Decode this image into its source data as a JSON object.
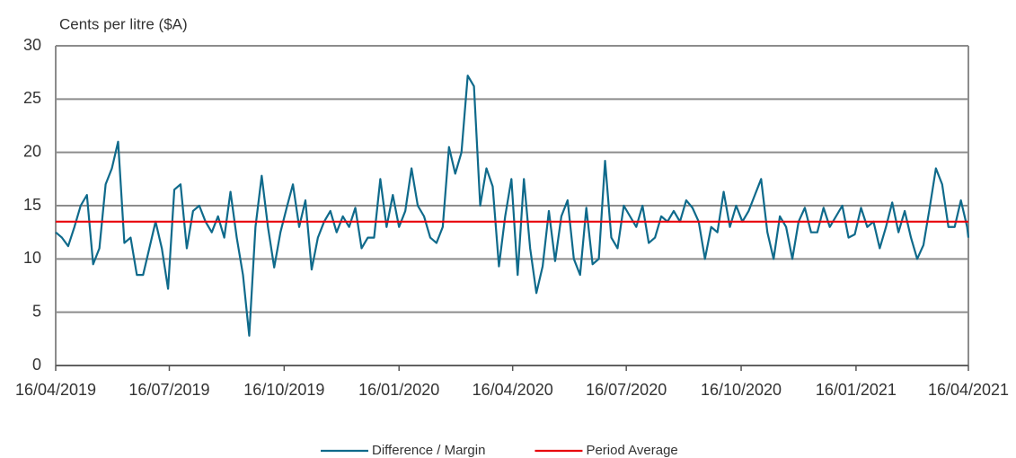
{
  "chart_data": {
    "type": "line",
    "y_axis_label": "Cents per litre ($A)",
    "x": [
      "2019-04-16",
      "2019-04-21",
      "2019-04-26",
      "2019-05-01",
      "2019-05-06",
      "2019-05-11",
      "2019-05-16",
      "2019-05-21",
      "2019-05-26",
      "2019-05-31",
      "2019-06-05",
      "2019-06-10",
      "2019-06-15",
      "2019-06-20",
      "2019-06-25",
      "2019-06-30",
      "2019-07-05",
      "2019-07-10",
      "2019-07-15",
      "2019-07-20",
      "2019-07-25",
      "2019-07-30",
      "2019-08-04",
      "2019-08-09",
      "2019-08-14",
      "2019-08-19",
      "2019-08-24",
      "2019-08-29",
      "2019-09-03",
      "2019-09-08",
      "2019-09-13",
      "2019-09-18",
      "2019-09-23",
      "2019-09-28",
      "2019-10-03",
      "2019-10-08",
      "2019-10-13",
      "2019-10-18",
      "2019-10-23",
      "2019-10-28",
      "2019-11-02",
      "2019-11-07",
      "2019-11-12",
      "2019-11-17",
      "2019-11-22",
      "2019-11-27",
      "2019-12-02",
      "2019-12-07",
      "2019-12-12",
      "2019-12-17",
      "2019-12-22",
      "2019-12-27",
      "2020-01-01",
      "2020-01-06",
      "2020-01-11",
      "2020-01-16",
      "2020-01-21",
      "2020-01-26",
      "2020-01-31",
      "2020-02-05",
      "2020-02-10",
      "2020-02-15",
      "2020-02-20",
      "2020-02-25",
      "2020-03-01",
      "2020-03-06",
      "2020-03-11",
      "2020-03-16",
      "2020-03-21",
      "2020-03-26",
      "2020-03-31",
      "2020-04-05",
      "2020-04-10",
      "2020-04-15",
      "2020-04-20",
      "2020-04-25",
      "2020-04-30",
      "2020-05-05",
      "2020-05-10",
      "2020-05-15",
      "2020-05-20",
      "2020-05-25",
      "2020-05-30",
      "2020-06-04",
      "2020-06-09",
      "2020-06-14",
      "2020-06-19",
      "2020-06-24",
      "2020-06-29",
      "2020-07-04",
      "2020-07-09",
      "2020-07-14",
      "2020-07-19",
      "2020-07-24",
      "2020-07-29",
      "2020-08-03",
      "2020-08-08",
      "2020-08-13",
      "2020-08-18",
      "2020-08-23",
      "2020-08-28",
      "2020-09-02",
      "2020-09-07",
      "2020-09-12",
      "2020-09-17",
      "2020-09-22",
      "2020-09-27",
      "2020-10-02",
      "2020-10-07",
      "2020-10-12",
      "2020-10-17",
      "2020-10-22",
      "2020-10-27",
      "2020-11-01",
      "2020-11-06",
      "2020-11-11",
      "2020-11-16",
      "2020-11-21",
      "2020-11-26",
      "2020-12-01",
      "2020-12-06",
      "2020-12-11",
      "2020-12-16",
      "2020-12-21",
      "2020-12-26",
      "2020-12-31",
      "2021-01-05",
      "2021-01-10",
      "2021-01-15",
      "2021-01-20",
      "2021-01-25",
      "2021-01-30",
      "2021-02-04",
      "2021-02-09",
      "2021-02-14",
      "2021-02-19",
      "2021-02-24",
      "2021-03-01",
      "2021-03-06",
      "2021-03-11",
      "2021-03-16",
      "2021-03-21",
      "2021-03-26",
      "2021-03-31",
      "2021-04-05",
      "2021-04-10",
      "2021-04-15",
      "2021-04-16"
    ],
    "series": [
      {
        "name": "Difference / Margin",
        "color": "#0f6a8b",
        "values": [
          12.5,
          12,
          11.2,
          13,
          15,
          16,
          9.5,
          11,
          17,
          18.5,
          21,
          11.5,
          12,
          8.5,
          8.5,
          11,
          13.5,
          11,
          7.2,
          16.5,
          17,
          11,
          14.5,
          15,
          13.5,
          12.5,
          14,
          12,
          16.3,
          12,
          8.5,
          2.8,
          13,
          17.8,
          13,
          9.2,
          12.5,
          14.8,
          17,
          13,
          15.5,
          9,
          12,
          13.5,
          14.5,
          12.5,
          14,
          13,
          14.8,
          11,
          12,
          12,
          17.5,
          13,
          16,
          13,
          14.5,
          18.5,
          15,
          14,
          12,
          11.5,
          13,
          20.5,
          18,
          20,
          27.2,
          26.2,
          15,
          18.5,
          16.8,
          9.3,
          14,
          17.5,
          8.5,
          17.5,
          11,
          6.8,
          9.3,
          14.5,
          9.8,
          14,
          15.5,
          10,
          8.5,
          14.8,
          9.5,
          10,
          19.2,
          12,
          11,
          15,
          14,
          13,
          15,
          11.5,
          12,
          14,
          13.5,
          14.5,
          13.5,
          15.5,
          14.8,
          13.5,
          10,
          13,
          12.5,
          16.3,
          13,
          15,
          13.5,
          14.5,
          16,
          17.5,
          12.5,
          10,
          14,
          13,
          10,
          13.5,
          14.8,
          12.5,
          12.5,
          14.8,
          13,
          14,
          15,
          12,
          12.3,
          14.8,
          13,
          13.5,
          11,
          13,
          15.3,
          12.5,
          14.5,
          12,
          10,
          11.3,
          14.8,
          18.5,
          17,
          13,
          13,
          15.5,
          13,
          12
        ]
      }
    ],
    "reference_line": {
      "name": "Period Average",
      "value": 13.5,
      "color": "#e8000b"
    },
    "xlim": [
      "2019-04-16",
      "2021-04-16"
    ],
    "xticks": [
      {
        "value": "2019-04-16",
        "label": "16/04/2019"
      },
      {
        "value": "2019-07-16",
        "label": "16/07/2019"
      },
      {
        "value": "2019-10-16",
        "label": "16/10/2019"
      },
      {
        "value": "2020-01-16",
        "label": "16/01/2020"
      },
      {
        "value": "2020-04-16",
        "label": "16/04/2020"
      },
      {
        "value": "2020-07-16",
        "label": "16/07/2020"
      },
      {
        "value": "2020-10-16",
        "label": "16/10/2020"
      },
      {
        "value": "2021-01-16",
        "label": "16/01/2021"
      },
      {
        "value": "2021-04-16",
        "label": "16/04/2021"
      }
    ],
    "ylim": [
      0,
      30
    ],
    "yticks": [
      0,
      5,
      10,
      15,
      20,
      25,
      30
    ],
    "grid": true,
    "legend": "bottom"
  }
}
